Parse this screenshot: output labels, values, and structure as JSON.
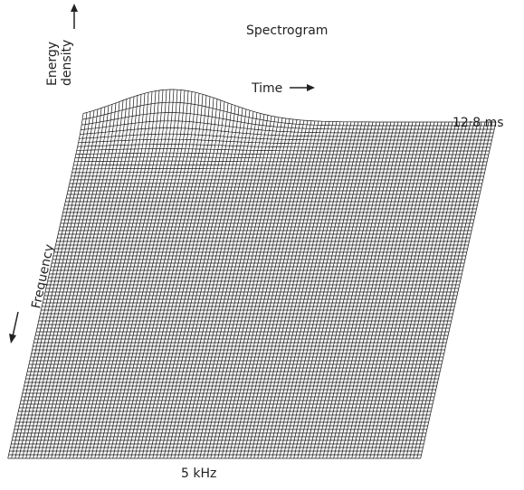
{
  "title": "Spectrogram",
  "labels": {
    "energy": [
      "Energy",
      "density"
    ],
    "time": "Time",
    "time_end": "12·8 ms",
    "frequency": "Frequency",
    "frequency_end": "5 kHz"
  }
}
